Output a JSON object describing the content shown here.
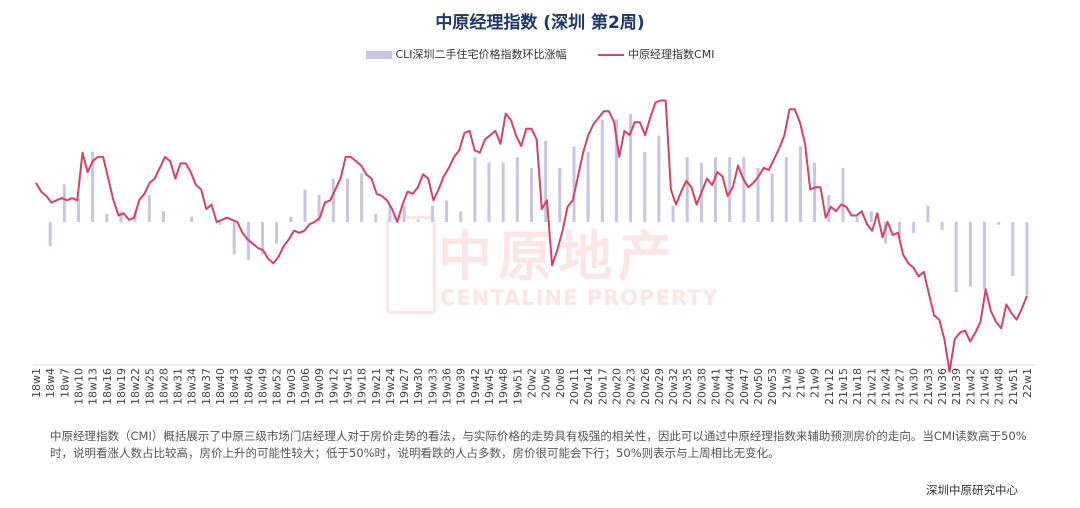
{
  "chart_data": {
    "type": "bar+line",
    "title": "中原经理指数 (深圳 第2周)",
    "legend": [
      "CLI深圳二手住宅价格指数环比涨幅",
      "中原经理指数CMI"
    ],
    "legend_placement": "top",
    "colors": {
      "bar": "#c7c5e3",
      "line": "#d9415f",
      "title": "#1f3864"
    },
    "grid": false,
    "tick_labels": [
      "18w1",
      "18w4",
      "18w7",
      "18w10",
      "18w13",
      "18w16",
      "18w19",
      "18w22",
      "18w25",
      "18w28",
      "18w31",
      "18w34",
      "18w37",
      "18w40",
      "18w43",
      "18w46",
      "18w49",
      "18w52",
      "19w03",
      "19w06",
      "19w09",
      "19w12",
      "19w15",
      "19w18",
      "19w21",
      "19w24",
      "19w27",
      "19w30",
      "19w33",
      "19w36",
      "19w39",
      "19w42",
      "19w45",
      "19w48",
      "19w51",
      "20w2",
      "20w5",
      "20w8",
      "20w11",
      "20w14",
      "20w17",
      "20w20",
      "20w23",
      "20w26",
      "20w29",
      "20w32",
      "20w35",
      "20w38",
      "20w41",
      "20w44",
      "20w47",
      "20w50",
      "20w53",
      "21w3",
      "21w6",
      "21w9",
      "21w12",
      "21w15",
      "21w18",
      "21w21",
      "21w24",
      "21w27",
      "21w30",
      "21w33",
      "21w36",
      "21w39",
      "21w42",
      "21w45",
      "21w48",
      "21w51",
      "22w1"
    ],
    "series": [
      {
        "name": "CLI深圳二手住宅价格指数环比涨幅",
        "type": "bar",
        "note": "one bar every third week, value per tick label",
        "values": [
          0,
          -0.45,
          0.7,
          0.45,
          1.3,
          0.15,
          0.2,
          0.2,
          0.5,
          0.2,
          0,
          0.1,
          0,
          -0.05,
          -0.6,
          -0.7,
          -0.6,
          -0.4,
          0.1,
          0.6,
          0.5,
          0.8,
          0.8,
          0.9,
          0.15,
          0.3,
          0.3,
          0.05,
          0.3,
          0.4,
          0.2,
          1.2,
          1.1,
          1.1,
          1.2,
          1.0,
          1.5,
          1.0,
          1.4,
          1.3,
          1.9,
          1.9,
          2.0,
          1.3,
          1.6,
          0.3,
          1.2,
          1.1,
          1.2,
          1.2,
          1.2,
          1.0,
          0.9,
          1.2,
          1.4,
          1.1,
          0.5,
          1.0,
          0.1,
          0.2,
          -0.4,
          -0.3,
          -0.2,
          0.3,
          -0.15,
          -1.3,
          -1.2,
          -1.25,
          -0.05,
          -1.0,
          -1.35
        ]
      },
      {
        "name": "中原经理指数CMI",
        "type": "line",
        "values": [
          51.8,
          51.4,
          51.2,
          50.9,
          51.0,
          51.1,
          51.0,
          51.1,
          51.0,
          53.2,
          52.3,
          52.8,
          53.0,
          53.0,
          52.0,
          51.0,
          50.3,
          50.4,
          50.1,
          50.2,
          51.0,
          51.3,
          51.8,
          52.0,
          52.5,
          53.0,
          52.8,
          52.0,
          52.7,
          52.7,
          52.3,
          51.7,
          51.5,
          50.6,
          50.8,
          50.0,
          50.1,
          50.2,
          50.1,
          50.0,
          49.5,
          49.2,
          49.0,
          48.8,
          48.7,
          48.3,
          48.1,
          48.4,
          48.9,
          49.2,
          49.6,
          49.5,
          49.6,
          49.9,
          50.0,
          50.2,
          50.9,
          51.0,
          51.5,
          52.0,
          53.0,
          53.0,
          52.8,
          52.6,
          52.2,
          52.0,
          51.3,
          51.2,
          51.0,
          50.6,
          50.0,
          50.8,
          51.4,
          51.3,
          51.6,
          52.2,
          52.0,
          51.0,
          51.5,
          52.1,
          52.5,
          53.0,
          53.3,
          54.1,
          54.2,
          53.3,
          53.2,
          53.8,
          54.0,
          54.2,
          53.6,
          55.0,
          54.7,
          54.0,
          53.5,
          54.3,
          54.3,
          53.8,
          50.6,
          51.0,
          48.0,
          48.7,
          49.6,
          50.7,
          51.0,
          52.1,
          53.2,
          54.0,
          54.5,
          54.8,
          55.1,
          55.1,
          54.6,
          53.0,
          54.2,
          54.0,
          54.6,
          54.6,
          54.0,
          54.8,
          55.5,
          55.6,
          55.6,
          51.5,
          50.8,
          51.4,
          51.9,
          51.6,
          50.8,
          51.4,
          52.0,
          51.7,
          52.3,
          52.1,
          51.2,
          51.6,
          52.6,
          52.0,
          51.6,
          51.8,
          52.1,
          52.5,
          52.4,
          52.9,
          53.4,
          54.0,
          55.2,
          55.2,
          54.6,
          53.6,
          51.5,
          51.6,
          51.6,
          50.2,
          50.7,
          50.5,
          50.8,
          50.7,
          50.3,
          50.3,
          50.5,
          49.9,
          49.6,
          50.4,
          49.3,
          50.0,
          49.4,
          49.5,
          48.5,
          48.1,
          47.9,
          47.5,
          47.7,
          46.7,
          45.7,
          45.5,
          44.6,
          43.1,
          44.6,
          44.9,
          45.0,
          44.5,
          44.9,
          45.4,
          46.9,
          45.9,
          45.4,
          45.1,
          46.2,
          45.8,
          45.5,
          46.0,
          46.6
        ]
      }
    ]
  },
  "note": "中原经理指数（CMI）概括展示了中原三级市场门店经理人对于房价走势的看法，与实际价格的走势具有极强的相关性，因此可以通过中原经理指数来辅助预测房价的走向。当CMI读数高于50%时，说明看涨人数占比较高，房价上升的可能性较大；低于50%时，说明看跌的人占多数，房价很可能会下行；50%则表示与上周相比无变化。",
  "source": "深圳中原研究中心",
  "watermark": {
    "cn": "中原地产",
    "en": "CENTALINE PROPERTY"
  }
}
